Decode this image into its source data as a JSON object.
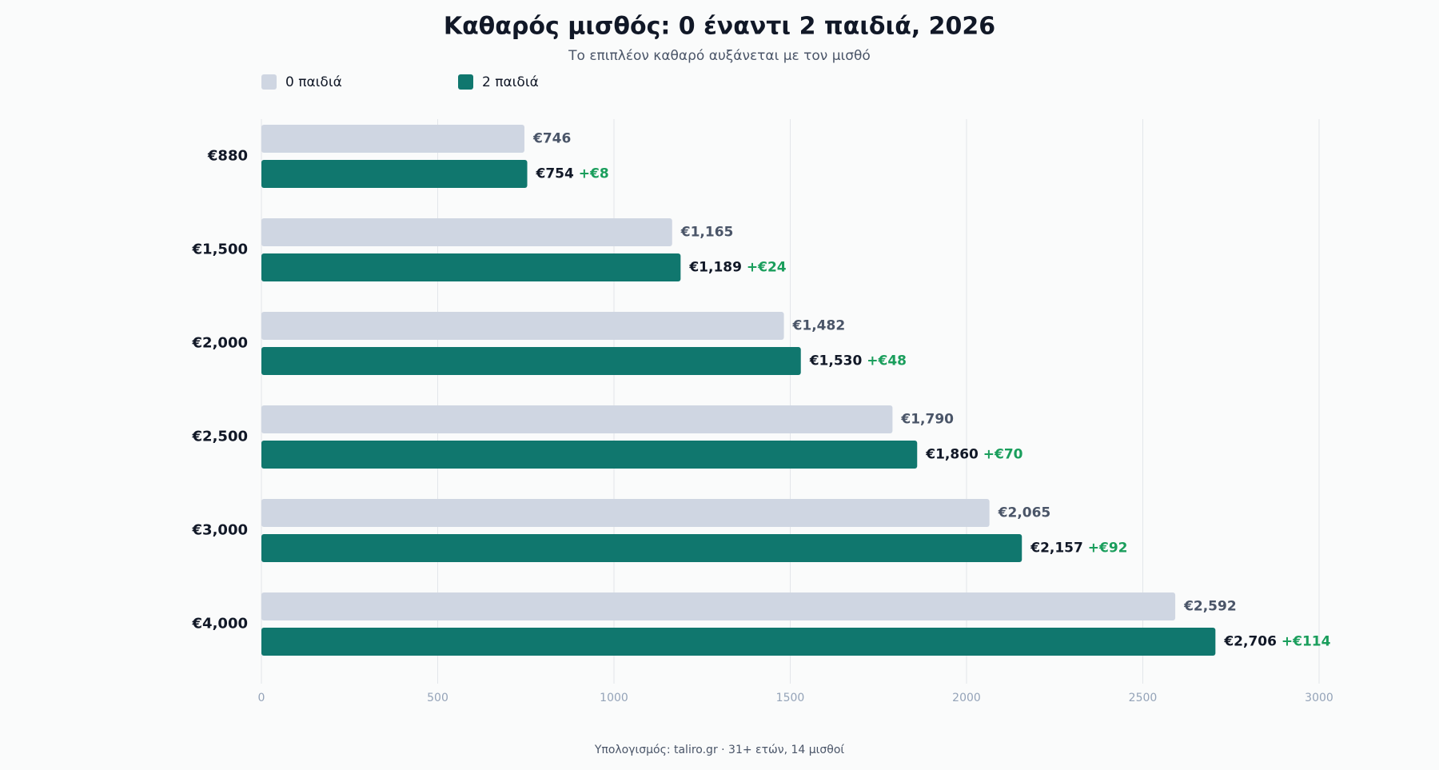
{
  "chart_data": {
    "type": "hbar",
    "title": "Καθαρός μισθός: 0 έναντι 2 παιδιά, 2026",
    "subtitle": "Το επιπλέον καθαρό αυξάνεται με τον μισθό",
    "footer": "Υπολογισμός: taliro.gr · 31+ ετών, 14 μισθοί",
    "categories": [
      "€880",
      "€1,500",
      "€2,000",
      "€2,500",
      "€3,000",
      "€4,000"
    ],
    "series": [
      {
        "name": "0 παιδιά",
        "color": "#cfd6e2",
        "values": [
          746,
          1165,
          1482,
          1790,
          2065,
          2592
        ],
        "value_labels": [
          "€746",
          "€1,165",
          "€1,482",
          "€1,790",
          "€2,065",
          "€2,592"
        ]
      },
      {
        "name": "2 παιδιά",
        "color": "#10776e",
        "values": [
          754,
          1189,
          1530,
          1860,
          2157,
          2706
        ],
        "value_labels": [
          "€754",
          "€1,189",
          "€1,530",
          "€1,860",
          "€2,157",
          "€2,706"
        ],
        "difference_labels": [
          "+€8",
          "+€24",
          "+€48",
          "+€70",
          "+€92",
          "+€114"
        ]
      }
    ],
    "xlim": [
      0,
      3000
    ],
    "xticks": [
      0,
      500,
      1000,
      1500,
      2000,
      2500,
      3000
    ],
    "grid": true,
    "legend": "top-left"
  }
}
